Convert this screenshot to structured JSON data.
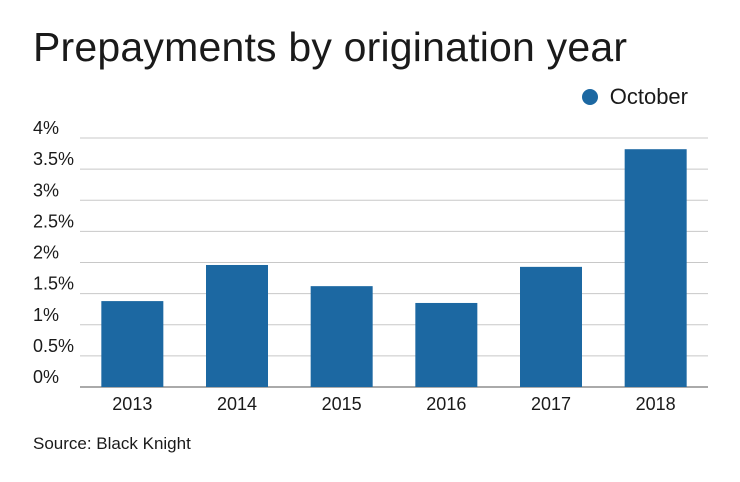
{
  "colors": {
    "bar": "#1c68a2",
    "grid": "#c8c8c8",
    "axis": "#777777",
    "text": "#1a1a1a"
  },
  "chart_data": {
    "type": "bar",
    "title": "Prepayments by origination year",
    "categories": [
      "2013",
      "2014",
      "2015",
      "2016",
      "2017",
      "2018"
    ],
    "series": [
      {
        "name": "October",
        "values": [
          1.38,
          1.96,
          1.62,
          1.35,
          1.93,
          3.82
        ]
      }
    ],
    "ylim": [
      0,
      4
    ],
    "yticks": [
      "0%",
      "0.5%",
      "1%",
      "1.5%",
      "2%",
      "2.5%",
      "3%",
      "3.5%",
      "4%"
    ],
    "ytick_values": [
      0,
      0.5,
      1,
      1.5,
      2,
      2.5,
      3,
      3.5,
      4
    ],
    "grid": true,
    "legend": "top-right",
    "xlabel": "",
    "ylabel": ""
  },
  "source": "Source: Black Knight"
}
